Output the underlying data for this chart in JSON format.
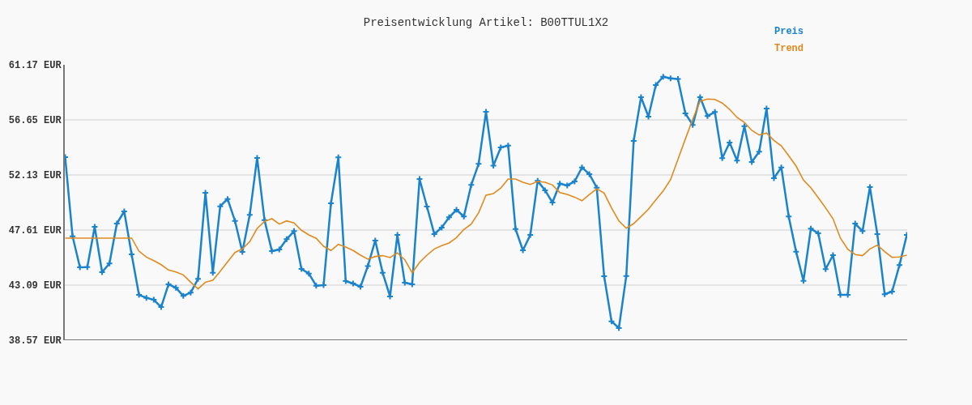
{
  "chart_data": {
    "type": "line",
    "title": "Preisentwicklung Artikel: B00TTUL1X2",
    "categories": [
      null,
      null,
      null,
      null,
      null,
      null,
      null,
      null,
      null,
      null,
      null,
      null,
      null,
      null,
      null,
      null,
      null,
      null,
      null,
      null,
      null,
      null,
      null,
      null,
      null,
      null,
      null,
      null,
      null,
      null,
      null,
      null,
      null,
      null,
      null,
      null,
      null,
      null,
      null,
      null,
      null,
      null,
      null,
      null,
      null,
      null,
      null,
      null,
      null,
      null,
      null,
      null,
      null,
      null,
      null,
      null,
      null,
      null,
      null,
      null,
      null,
      null,
      null,
      null,
      null,
      null,
      null,
      null,
      null,
      null,
      null,
      null,
      null,
      null,
      null,
      null,
      null,
      null,
      null,
      null,
      null,
      null,
      null,
      null,
      null,
      null,
      null,
      null,
      null,
      null,
      null,
      null,
      null,
      null,
      null,
      null,
      null,
      null,
      null,
      null,
      null,
      null,
      null,
      null,
      null,
      null,
      null,
      null,
      null,
      null,
      null,
      null,
      null,
      null,
      null
    ],
    "series": [
      {
        "name": "Preis",
        "color": "#1a83cc",
        "marker": "cross",
        "values": [
          53.59,
          47.1,
          44.55,
          44.57,
          47.88,
          44.15,
          44.87,
          48.14,
          49.14,
          45.62,
          42.29,
          42.05,
          41.89,
          41.29,
          43.16,
          42.87,
          42.21,
          42.47,
          43.6,
          50.67,
          44.11,
          49.56,
          50.16,
          48.36,
          45.81,
          48.85,
          53.53,
          48.43,
          45.88,
          46.01,
          46.86,
          47.52,
          44.42,
          44.04,
          43.04,
          43.09,
          49.8,
          53.57,
          43.42,
          43.22,
          42.96,
          44.66,
          46.75,
          44.11,
          42.16,
          47.21,
          43.29,
          43.16,
          51.8,
          49.54,
          47.28,
          47.81,
          48.65,
          49.27,
          48.72,
          51.31,
          53.04,
          57.31,
          52.9,
          54.39,
          54.54,
          47.7,
          45.95,
          47.21,
          51.64,
          50.87,
          49.87,
          51.42,
          51.27,
          51.6,
          52.75,
          52.2,
          51.09,
          43.82,
          40.12,
          39.57,
          43.84,
          54.92,
          58.51,
          56.92,
          59.51,
          60.19,
          60.06,
          60.0,
          57.18,
          56.23,
          58.51,
          56.96,
          57.3,
          53.51,
          54.79,
          53.31,
          56.14,
          53.19,
          54.04,
          57.58,
          51.86,
          52.75,
          48.72,
          45.84,
          43.44,
          47.72,
          47.34,
          44.4,
          45.55,
          42.29,
          42.29,
          48.14,
          47.52,
          51.13,
          47.28,
          42.34,
          42.56,
          44.73,
          47.21
        ]
      },
      {
        "name": "Trend",
        "color": "#e08a1e",
        "marker": "none",
        "values": [
          46.95,
          46.95,
          46.95,
          46.95,
          46.95,
          46.95,
          46.95,
          46.95,
          46.95,
          46.95,
          45.88,
          45.39,
          45.1,
          44.77,
          44.33,
          44.17,
          43.93,
          43.33,
          42.78,
          43.33,
          43.49,
          44.22,
          45.0,
          45.77,
          46.06,
          46.66,
          47.74,
          48.32,
          48.54,
          48.1,
          48.36,
          48.19,
          47.59,
          47.21,
          46.93,
          46.28,
          45.93,
          46.43,
          46.21,
          45.93,
          45.55,
          45.22,
          45.44,
          45.51,
          45.35,
          45.73,
          45.17,
          44.11,
          44.95,
          45.55,
          46.06,
          46.33,
          46.55,
          46.99,
          47.66,
          48.1,
          49.03,
          50.47,
          50.6,
          51.05,
          51.8,
          51.8,
          51.53,
          51.35,
          51.6,
          51.53,
          51.31,
          50.69,
          50.53,
          50.31,
          50.02,
          50.53,
          50.98,
          50.65,
          49.43,
          48.36,
          47.76,
          48.14,
          48.72,
          49.32,
          50.09,
          50.82,
          51.75,
          53.41,
          55.08,
          56.7,
          58.18,
          58.36,
          58.33,
          58.03,
          57.51,
          56.85,
          56.45,
          55.79,
          55.41,
          55.57,
          54.97,
          54.52,
          53.71,
          52.86,
          51.71,
          51.09,
          50.27,
          49.43,
          48.54,
          46.95,
          46.04,
          45.6,
          45.51,
          46.06,
          46.37,
          45.84,
          45.37,
          45.4,
          45.55
        ]
      }
    ],
    "ylim": [
      38.57,
      61.17
    ],
    "yticks": [
      {
        "value": 38.57,
        "label": "38.57 EUR"
      },
      {
        "value": 43.09,
        "label": "43.09 EUR"
      },
      {
        "value": 47.61,
        "label": "47.61 EUR"
      },
      {
        "value": 52.13,
        "label": "52.13 EUR"
      },
      {
        "value": 56.65,
        "label": "56.65 EUR"
      },
      {
        "value": 61.17,
        "label": "61.17 EUR"
      }
    ],
    "grid": "y",
    "legend": "top right",
    "line_style": "solid",
    "tick_labels": "y"
  }
}
